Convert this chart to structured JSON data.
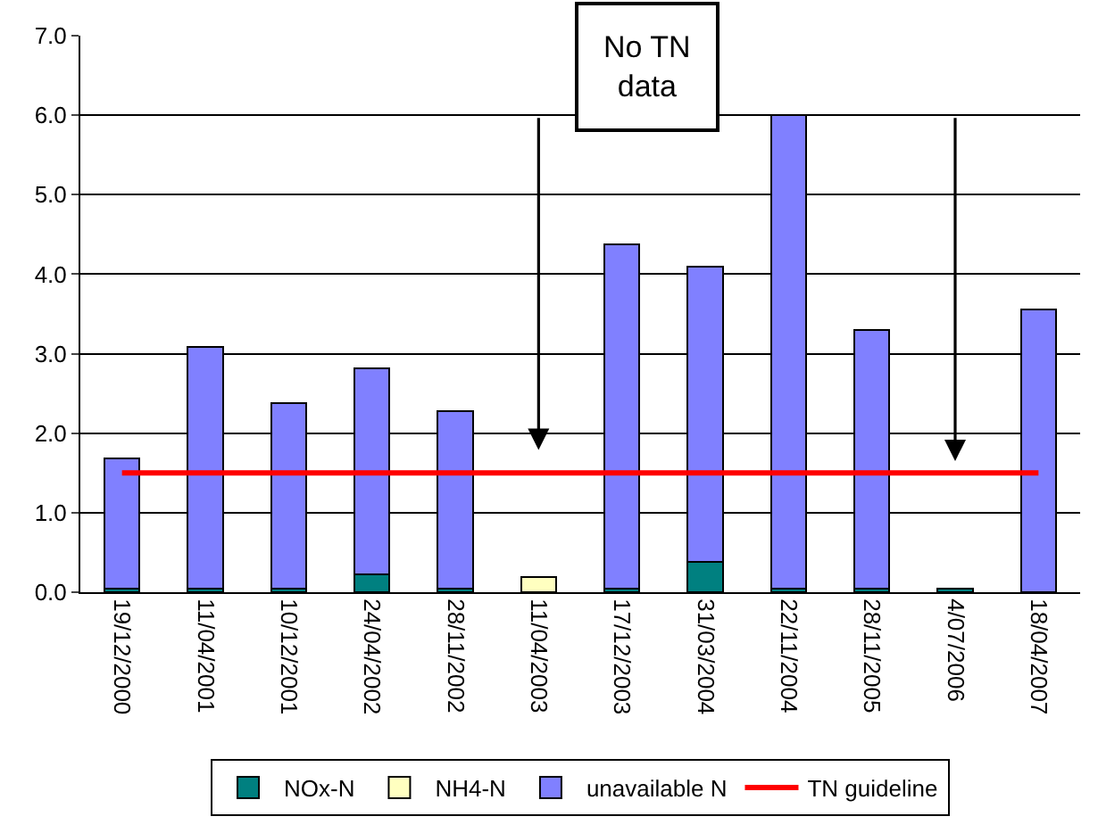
{
  "chart_data": {
    "type": "bar",
    "stacked": true,
    "categories": [
      "19/12/2000",
      "11/04/2001",
      "10/12/2001",
      "24/04/2002",
      "28/11/2002",
      "11/04/2003",
      "17/12/2003",
      "31/03/2004",
      "22/11/2004",
      "28/11/2005",
      "4/07/2006",
      "18/04/2007"
    ],
    "series": [
      {
        "name": "NOx-N",
        "color": "#008080",
        "values": [
          0.05,
          0.05,
          0.05,
          0.22,
          0.05,
          null,
          0.05,
          0.38,
          0.05,
          0.05,
          0.05,
          null
        ]
      },
      {
        "name": "NH4-N",
        "color": "#ffffc0",
        "values": [
          null,
          null,
          null,
          null,
          null,
          0.19,
          null,
          null,
          null,
          null,
          null,
          null
        ]
      },
      {
        "name": "unavailable N",
        "color": "#8080ff",
        "values": [
          1.63,
          3.03,
          2.33,
          2.6,
          2.23,
          null,
          4.33,
          3.72,
          5.95,
          3.25,
          null,
          3.56
        ]
      },
      {
        "name": "TN guideline",
        "type": "line",
        "color": "#ff0000",
        "values": [
          1.5,
          1.5,
          1.5,
          1.5,
          1.5,
          1.5,
          1.5,
          1.5,
          1.5,
          1.5,
          1.5,
          1.5
        ]
      }
    ],
    "ylim": [
      0,
      7
    ],
    "yticks": [
      {
        "value": 0,
        "label": "0.0"
      },
      {
        "value": 1,
        "label": "1.0"
      },
      {
        "value": 2,
        "label": "2.0"
      },
      {
        "value": 3,
        "label": "3.0"
      },
      {
        "value": 4,
        "label": "4.0"
      },
      {
        "value": 5,
        "label": "5.0"
      },
      {
        "value": 6,
        "label": "6.0"
      },
      {
        "value": 7,
        "label": "7.0"
      }
    ],
    "grid": "y",
    "legend": "bottom",
    "annotations": [
      "No TN\ndata"
    ]
  }
}
